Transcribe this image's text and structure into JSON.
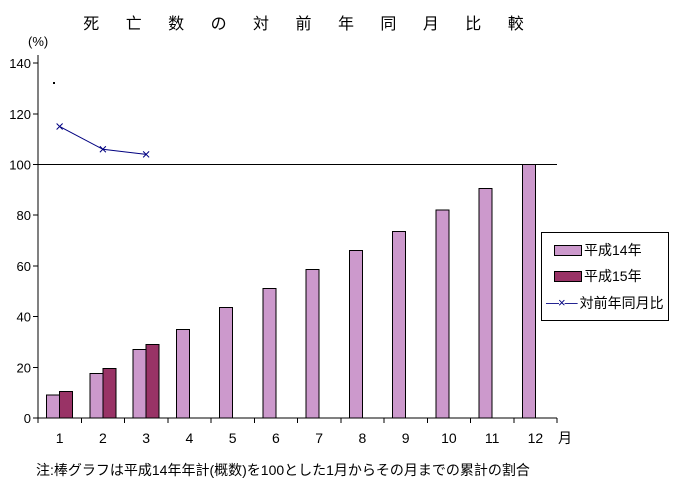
{
  "chart_data": {
    "type": "bar",
    "title": "死亡数の対前年同月比較",
    "title_display": "死 亡 数 の 対 前 年 同 月 比 較",
    "y_unit": "(%)",
    "x_unit": "月",
    "categories": [
      "1",
      "2",
      "3",
      "4",
      "5",
      "6",
      "7",
      "8",
      "9",
      "10",
      "11",
      "12"
    ],
    "yticks": [
      0,
      20,
      40,
      60,
      80,
      100,
      120,
      140
    ],
    "ylim": [
      0,
      140
    ],
    "reference_line": 100,
    "grid": false,
    "legend_position": "right",
    "series": [
      {
        "id": "heisei14",
        "name": "平成14年",
        "kind": "bar",
        "color": "#CC99CC",
        "values": [
          9,
          17.5,
          27,
          35,
          43.5,
          51,
          58.5,
          66,
          73.5,
          82,
          90.5,
          100
        ]
      },
      {
        "id": "heisei15",
        "name": "平成15年",
        "kind": "bar",
        "color": "#993366",
        "values": [
          10.5,
          19.5,
          29,
          null,
          null,
          null,
          null,
          null,
          null,
          null,
          null,
          null
        ]
      },
      {
        "id": "ratio",
        "name": "対前年同月比",
        "kind": "line",
        "color": "#000080",
        "marker": "x",
        "values": [
          115,
          106,
          104,
          null,
          null,
          null,
          null,
          null,
          null,
          null,
          null,
          null
        ]
      }
    ],
    "legend_line_sample": "—×—",
    "footnote": "注:棒グラフは平成14年年計(概数)を100とした1月からその月までの累計の割合"
  }
}
